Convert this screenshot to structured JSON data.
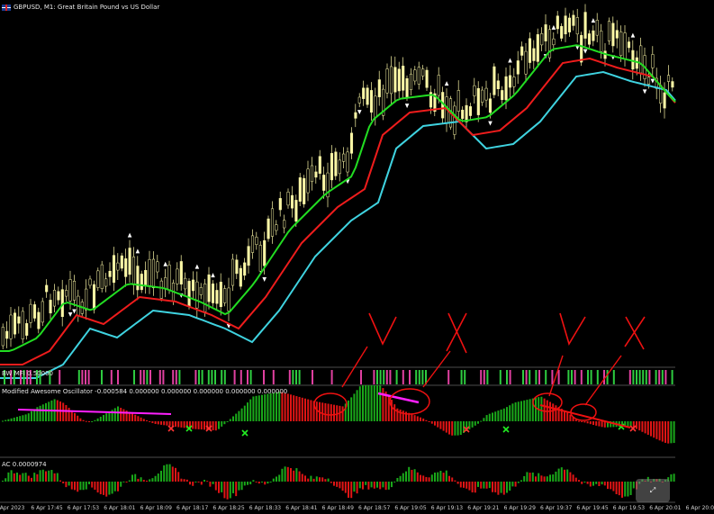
{
  "window": {
    "title": "GBPUSD, M1:  Great Britain Pound vs US Dollar",
    "flag_icon": "uk-flag-icon"
  },
  "panes": {
    "bw_mfi": {
      "label": "BW MFI 0.50000"
    },
    "mao": {
      "label": "Modified Awesome Oscillator -0.000584 0.000000 0.000000 0.000000 0.000000 0.000000"
    },
    "ac": {
      "label": "AC 0.0000974"
    }
  },
  "time_axis": {
    "ticks": [
      "6 Apr 2023",
      "6 Apr 17:45",
      "6 Apr 17:53",
      "6 Apr 18:01",
      "6 Apr 18:09",
      "6 Apr 18:17",
      "6 Apr 18:25",
      "6 Apr 18:33",
      "6 Apr 18:41",
      "6 Apr 18:49",
      "6 Apr 18:57",
      "6 Apr 19:05",
      "6 Apr 19:13",
      "6 Apr 19:21",
      "6 Apr 19:29",
      "6 Apr 19:37",
      "6 Apr 19:45",
      "6 Apr 19:53",
      "6 Apr 20:01",
      "6 Apr 20:0"
    ]
  },
  "watermark": {
    "icon": "expand-icon",
    "glyph": "⤢"
  },
  "colors": {
    "background": "#000000",
    "bull_candle": "#fbf7a6",
    "bear_candle": "#fbf7a6",
    "ma_fast": "#22dd22",
    "ma_mid": "#ee1c1c",
    "ma_slow": "#3fd3e0",
    "osc_up": "#1aa81a",
    "osc_down": "#e01515",
    "mfi_pink": "#e040a0",
    "mfi_green": "#2ecc40",
    "annotation": "#ee1111",
    "highlight": "#ff20ff"
  },
  "annotations": {
    "marks": [
      "V",
      "X",
      "V",
      "X"
    ]
  }
}
